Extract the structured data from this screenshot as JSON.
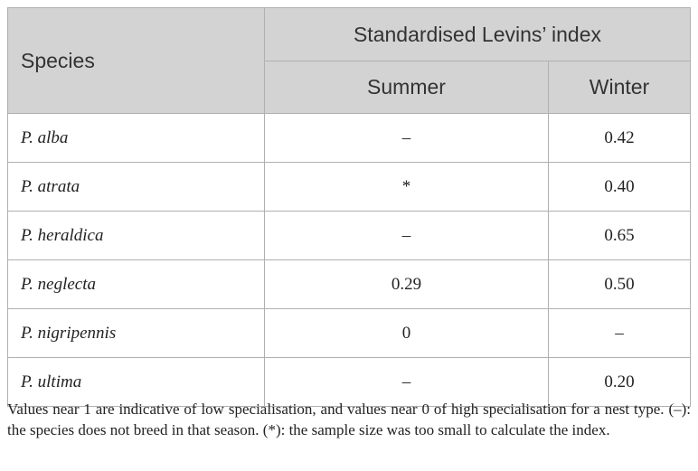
{
  "table": {
    "header": {
      "species": "Species",
      "group": "Standardised Levins’ index",
      "columns": [
        "Summer",
        "Winter"
      ]
    },
    "rows": [
      [
        "P. alba",
        "–",
        "0.42"
      ],
      [
        "P. atrata",
        "*",
        "0.40"
      ],
      [
        "P. heraldica",
        "–",
        "0.65"
      ],
      [
        "P. neglecta",
        "0.29",
        "0.50"
      ],
      [
        "P. nigripennis",
        "0",
        "–"
      ],
      [
        "P. ultima",
        "–",
        "0.20"
      ]
    ]
  },
  "footnote": "Values near 1 are indicative of low specialisation, and values near 0 of high specialisation for a nest type. (–): the species does not breed in that season. (*): the sample size was too small to calculate the index."
}
